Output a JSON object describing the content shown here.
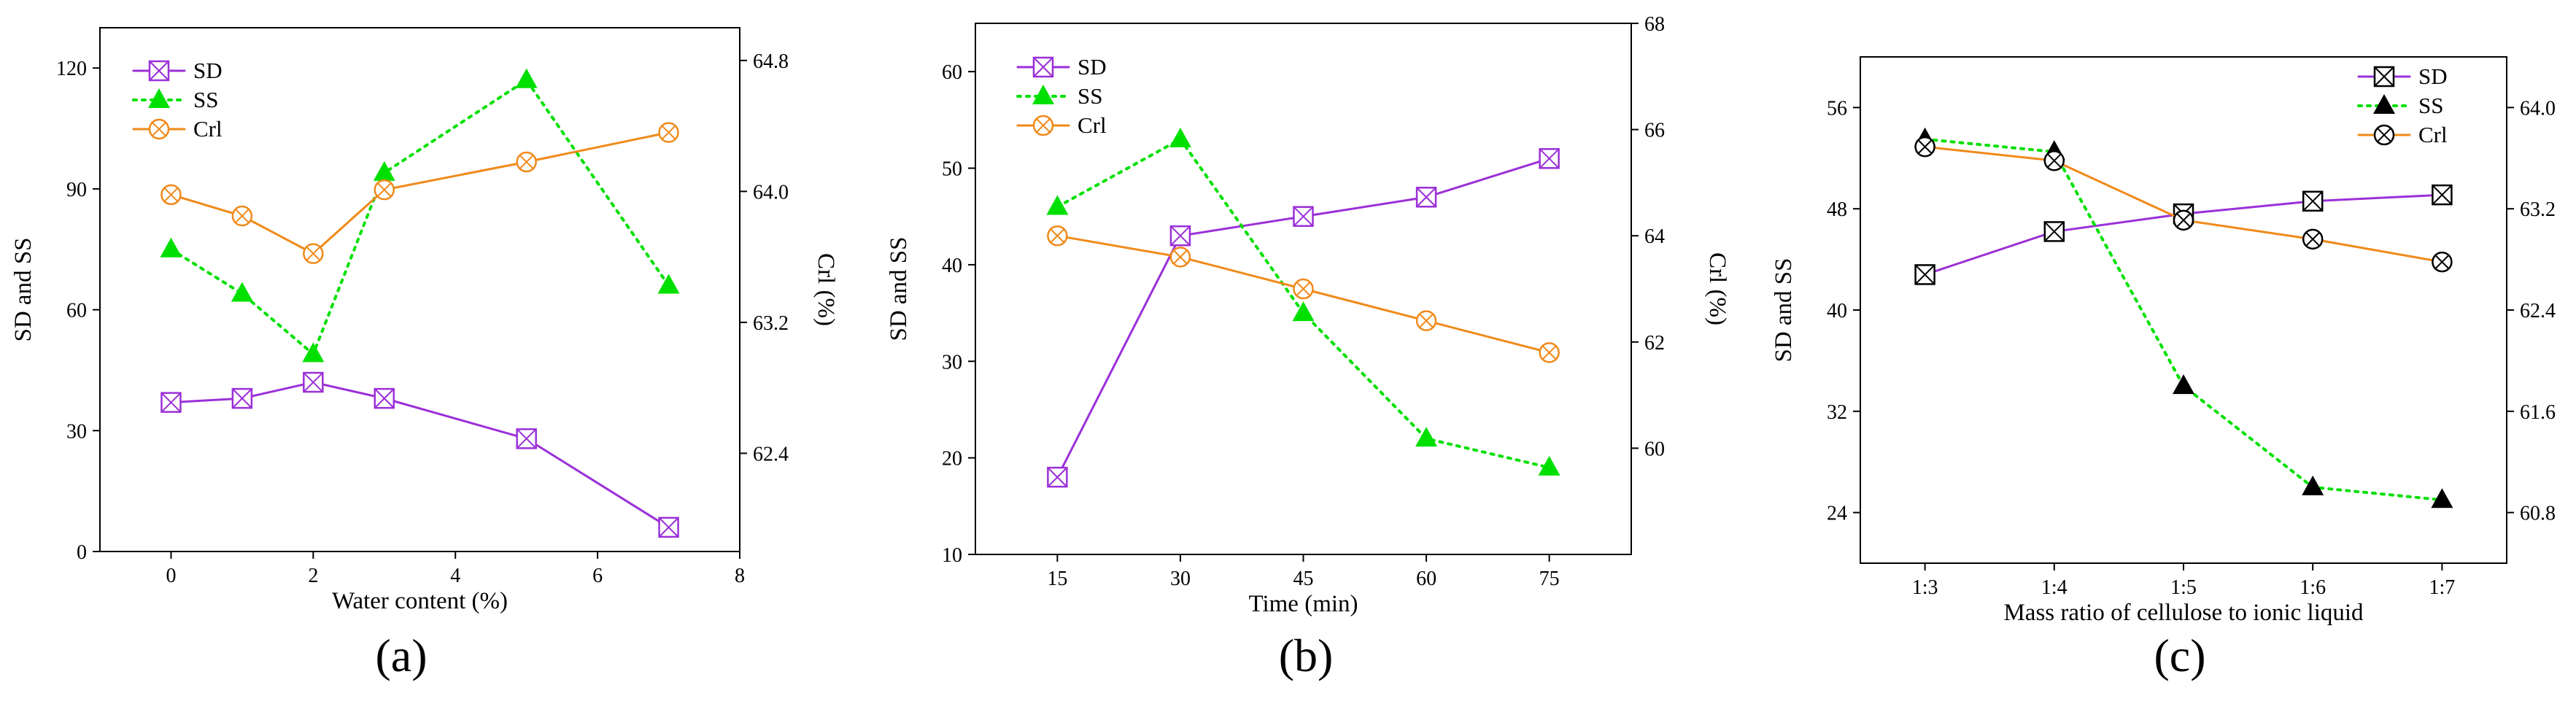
{
  "colors": {
    "SD": "#9b30d8",
    "SS": "#00e000",
    "Crl": "#f08a1a",
    "black_marker": "#000000"
  },
  "chart_data": [
    {
      "type": "line",
      "panel_label": "(a)",
      "x": [
        0,
        1,
        2,
        3,
        5,
        7
      ],
      "xlabel": "Water content (%)",
      "xlim": [
        -1,
        8
      ],
      "xticks": [
        0,
        2,
        4,
        6,
        8
      ],
      "ylabel": "SD and SS",
      "ylim": [
        0,
        130
      ],
      "yticks": [
        0,
        30,
        60,
        90,
        120
      ],
      "y2label": "Crl (%)",
      "y2lim": [
        61.8,
        65.0
      ],
      "y2ticks": [
        "62.4",
        "63.2",
        "64.0",
        "64.8"
      ],
      "series": [
        {
          "name": "SD",
          "axis": "left",
          "marker": "square-x",
          "dashed": false,
          "values": [
            37,
            38,
            42,
            38,
            28,
            6
          ]
        },
        {
          "name": "SS",
          "axis": "left",
          "marker": "triangle",
          "dashed": true,
          "values": [
            75,
            64,
            49,
            94,
            117,
            66
          ]
        },
        {
          "name": "Crl",
          "axis": "right",
          "marker": "circle-x",
          "dashed": false,
          "values": [
            63.98,
            63.85,
            63.62,
            64.01,
            64.18,
            64.36
          ]
        }
      ],
      "legend": [
        "SD",
        "SS",
        "Crl"
      ],
      "legend_position": "top-left"
    },
    {
      "type": "line",
      "panel_label": "(b)",
      "x": [
        15,
        30,
        45,
        60,
        75
      ],
      "xlabel": "Time (min)",
      "xlim": [
        5,
        85
      ],
      "xticks": [
        15,
        30,
        45,
        60,
        75
      ],
      "ylabel": "SD and SS",
      "ylim": [
        10,
        65
      ],
      "yticks": [
        10,
        20,
        30,
        40,
        50,
        60
      ],
      "y2label": "Crl (%)",
      "y2lim": [
        58,
        68
      ],
      "y2ticks": [
        "60",
        "62",
        "64",
        "66",
        "68"
      ],
      "series": [
        {
          "name": "SD",
          "axis": "left",
          "marker": "square-x",
          "dashed": false,
          "values": [
            18,
            43,
            45,
            47,
            51
          ]
        },
        {
          "name": "SS",
          "axis": "left",
          "marker": "triangle",
          "dashed": true,
          "values": [
            46,
            53,
            35,
            22,
            19
          ]
        },
        {
          "name": "Crl",
          "axis": "right",
          "marker": "circle-x",
          "dashed": false,
          "values": [
            64.0,
            63.6,
            63.0,
            62.4,
            61.8
          ]
        }
      ],
      "legend": [
        "SD",
        "SS",
        "Crl"
      ],
      "legend_position": "top-left"
    },
    {
      "type": "line",
      "panel_label": "(c)",
      "x": [
        "1:3",
        "1:4",
        "1:5",
        "1:6",
        "1:7"
      ],
      "xlabel": "Mass ratio of cellulose to ionic liquid",
      "xlim": [
        0.5,
        5.5
      ],
      "xticks": [
        "1:3",
        "1:4",
        "1:5",
        "1:6",
        "1:7"
      ],
      "ylabel": "SD and SS",
      "ylim": [
        20,
        60
      ],
      "yticks": [
        24,
        32,
        40,
        48,
        56
      ],
      "y2label": "Crl (%)",
      "y2lim": [
        60.4,
        64.4
      ],
      "y2ticks": [
        "60.8",
        "61.6",
        "62.4",
        "63.2",
        "64.0"
      ],
      "series": [
        {
          "name": "SD",
          "axis": "left",
          "marker": "square-x",
          "dashed": false,
          "values": [
            42.8,
            46.2,
            47.6,
            48.6,
            49.1
          ]
        },
        {
          "name": "SS",
          "axis": "left",
          "marker": "triangle",
          "dashed": true,
          "values": [
            53.5,
            52.5,
            34,
            26,
            25
          ]
        },
        {
          "name": "Crl",
          "axis": "right",
          "marker": "circle-x",
          "dashed": false,
          "values": [
            63.69,
            63.58,
            63.11,
            62.96,
            62.78
          ]
        }
      ],
      "legend": [
        "SD",
        "SS",
        "Crl"
      ],
      "legend_position": "top-right"
    }
  ]
}
